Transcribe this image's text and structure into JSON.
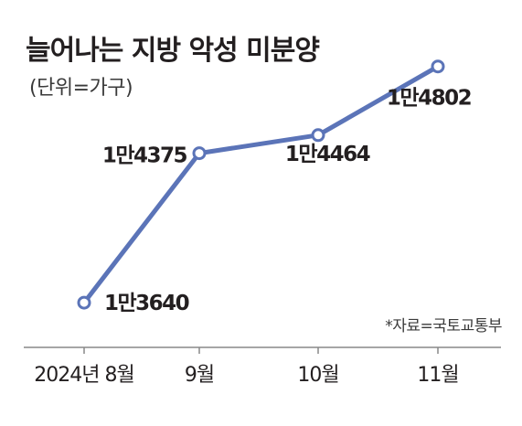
{
  "chart_data": {
    "type": "line",
    "title": "늘어나는 지방 악성 미분양",
    "unit_note": "(단위=가구)",
    "source": "*자료=국토교통부",
    "categories": [
      "2024년 8월",
      "9월",
      "10월",
      "11월"
    ],
    "values": [
      13640,
      14375,
      14464,
      14802
    ],
    "data_labels": [
      "1만3640",
      "1만4375",
      "1만4464",
      "1만4802"
    ],
    "ylim": [
      13600,
      14850
    ],
    "grid": false,
    "legend": "none",
    "line_color": "#5b74b8"
  }
}
